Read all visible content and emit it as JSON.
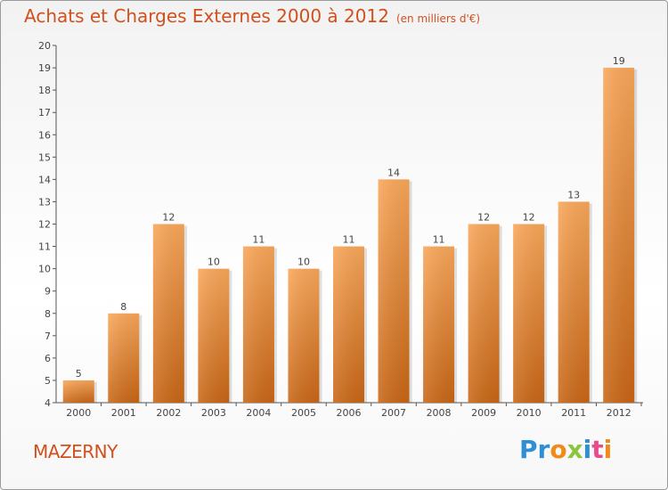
{
  "title": "Achats et Charges Externes 2000 à 2012",
  "unit": "(en milliers d'€)",
  "commune": "MAZERNY",
  "logo": {
    "text": "Proxiti",
    "letters": [
      {
        "ch": "P",
        "color": "#2f8fd6"
      },
      {
        "ch": "r",
        "color": "#2f8fd6"
      },
      {
        "ch": "o",
        "color": "#f08a1a"
      },
      {
        "ch": "x",
        "color": "#8cc63f"
      },
      {
        "ch": "i",
        "color": "#2f8fd6"
      },
      {
        "ch": "t",
        "color": "#e94b8c"
      },
      {
        "ch": "i",
        "color": "#f08a1a"
      }
    ]
  },
  "colors": {
    "bar_top": "#f9a75a",
    "bar_bottom": "#c86616",
    "title": "#d0501e",
    "axis": "#555555"
  },
  "chart_data": {
    "type": "bar",
    "categories": [
      "2000",
      "2001",
      "2002",
      "2003",
      "2004",
      "2005",
      "2006",
      "2007",
      "2008",
      "2009",
      "2010",
      "2011",
      "2012"
    ],
    "values": [
      5,
      8,
      12,
      10,
      11,
      10,
      11,
      14,
      11,
      12,
      12,
      13,
      19
    ],
    "ylim": [
      4,
      20
    ],
    "yticks": [
      4,
      5,
      6,
      7,
      8,
      9,
      10,
      11,
      12,
      13,
      14,
      15,
      16,
      17,
      18,
      19,
      20
    ],
    "grid": false,
    "legend": "none"
  }
}
